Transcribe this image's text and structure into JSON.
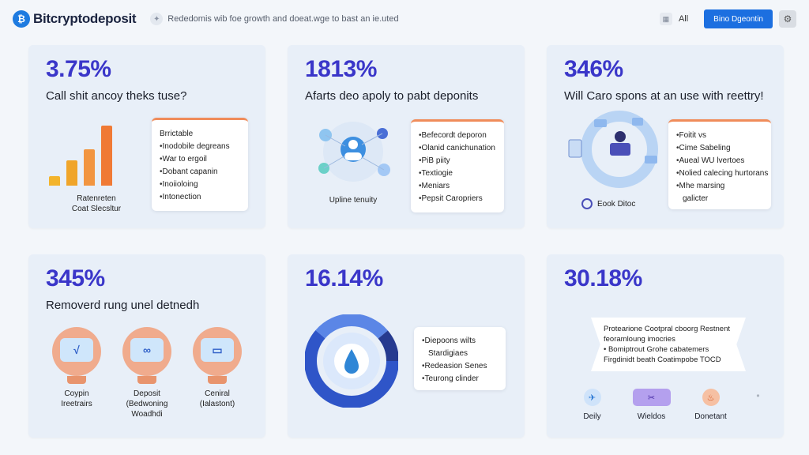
{
  "header": {
    "logo_text": "Bitcryptodeposit",
    "tagline": "Rededomis wib foe growth  and doeat.wge to bast an ie.uted",
    "all_label": "All",
    "cta_label": "Bino Dgeontin"
  },
  "cards": [
    {
      "stat": "3.75%",
      "title": "Call shit ancoy theks tuse?",
      "caption_lines": [
        "Ratenreten",
        "Coat Slecsltur"
      ],
      "panel_head": "Brrictable",
      "panel_items": [
        "Inodobile degreans",
        "War to ergoil",
        "Dobant capanin",
        "Inoiioloing",
        "Intonection"
      ],
      "bar_values": [
        0.16,
        0.42,
        0.6,
        1.0
      ],
      "colors": [
        "#f3b42c",
        "#f0a52a",
        "#f29540",
        "#f07a35"
      ]
    },
    {
      "stat": "1813%",
      "title": "Afarts deo apoly to pabt deponits",
      "caption_lines": [
        "Upline tenuity"
      ],
      "panel_items": [
        "Befecordt deporon",
        "Olanid canichunation",
        "PiB piity",
        "Textiogie",
        "Meniars",
        "Pepsit Caropriers"
      ]
    },
    {
      "stat": "346%",
      "title": "Will Caro spons at an use with reettry!",
      "caption_lines": [
        "Eook Ditoc"
      ],
      "panel_items": [
        "Foitit vs",
        "Cime Sabeling",
        "Aueal WU lvertoes",
        "Nolied calecing hurtorans",
        "Mhe marsing"
      ],
      "panel_tail": "galicter"
    },
    {
      "stat": "345%",
      "title": "Removerd rung unel detnedh",
      "bulbs": [
        {
          "lines": [
            "Coypin",
            "Ireetrairs"
          ],
          "glyph": "√"
        },
        {
          "lines": [
            "Deposit",
            "(Bedwoning",
            "Woadhdi"
          ],
          "glyph": "∞"
        },
        {
          "lines": [
            "Ceniral",
            "(Ialastont)"
          ],
          "glyph": "▭"
        }
      ]
    },
    {
      "stat": "16.14%",
      "panel_items": [
        "Diepoons wilts",
        "Stardigiaes",
        "Redeasion Senes",
        "Teurong clinder"
      ]
    },
    {
      "stat": "30.18%",
      "ribbon_lines": [
        "Protearione Cootpral cboorg Restnent",
        "feoramloung imocries"
      ],
      "ribbon_items": [
        "Bomiptrout Grohe cabatemers",
        "Firgdinidt beath Coatimpobe TOCD"
      ],
      "bottom_items": [
        {
          "label": "Deily",
          "glyph": "✈"
        },
        {
          "label": "Wieldos",
          "glyph": "✂"
        },
        {
          "label": "Donetant",
          "glyph": "♨"
        },
        {
          "label": "",
          "glyph": "•"
        }
      ]
    }
  ]
}
